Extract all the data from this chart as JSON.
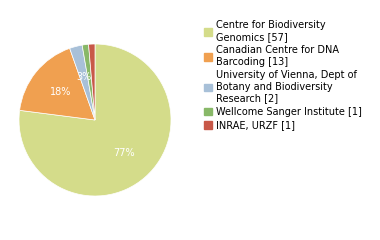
{
  "labels": [
    "Centre for Biodiversity\nGenomics [57]",
    "Canadian Centre for DNA\nBarcoding [13]",
    "University of Vienna, Dept of\nBotany and Biodiversity\nResearch [2]",
    "Wellcome Sanger Institute [1]",
    "INRAE, URZF [1]"
  ],
  "values": [
    57,
    13,
    2,
    1,
    1
  ],
  "colors": [
    "#d4dc8a",
    "#f0a050",
    "#a8c0d8",
    "#88b868",
    "#c85848"
  ],
  "text_color": "white",
  "font_size": 7,
  "legend_font_size": 7
}
